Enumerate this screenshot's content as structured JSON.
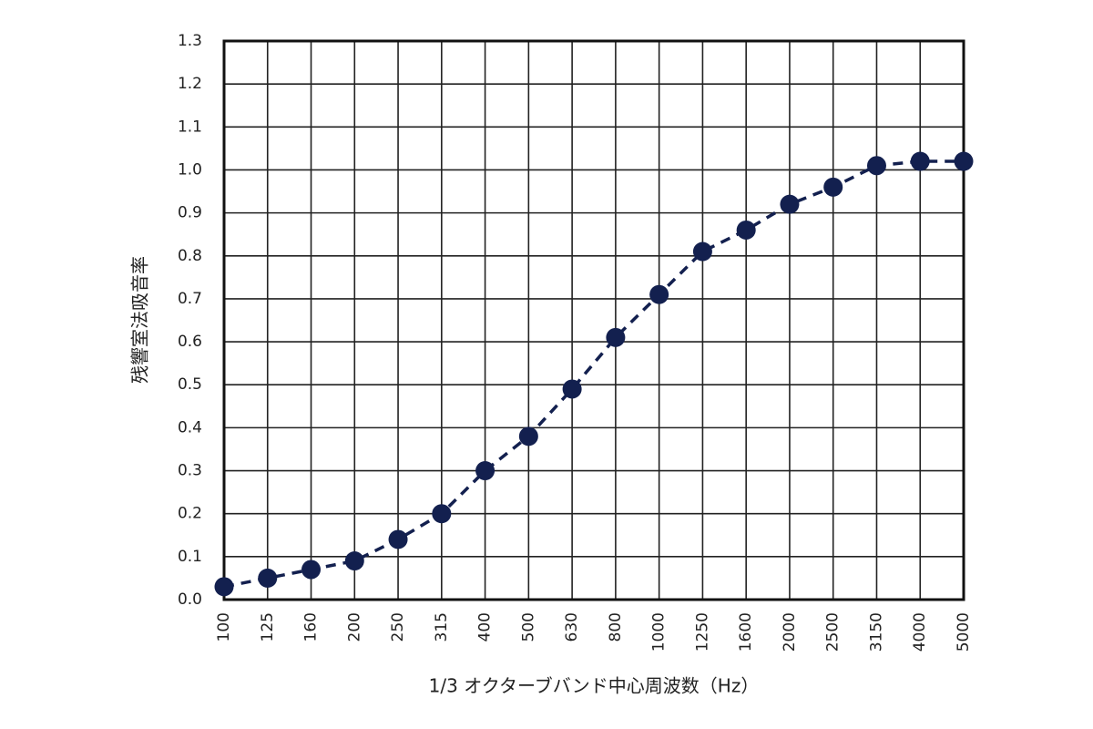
{
  "chart_data": {
    "type": "line",
    "xlabel": "1/3 オクターブバンド中心周波数（Hz）",
    "ylabel": "残響室法吸音率",
    "categories": [
      "100",
      "125",
      "160",
      "200",
      "250",
      "315",
      "400",
      "500",
      "630",
      "800",
      "1000",
      "1250",
      "1600",
      "2000",
      "2500",
      "3150",
      "4000",
      "5000"
    ],
    "series": [
      {
        "values": [
          0.03,
          0.05,
          0.07,
          0.09,
          0.14,
          0.2,
          0.3,
          0.38,
          0.49,
          0.61,
          0.71,
          0.81,
          0.86,
          0.92,
          0.96,
          1.01,
          1.02,
          1.02
        ]
      }
    ],
    "ylim": [
      0,
      1.3
    ],
    "yticks": [
      "0.0",
      "0.1",
      "0.2",
      "0.3",
      "0.4",
      "0.5",
      "0.6",
      "0.7",
      "0.8",
      "0.9",
      "1.0",
      "1.1",
      "1.2",
      "1.3"
    ],
    "grid": true,
    "line_style": "dashed",
    "marker": "circle",
    "colors": {
      "series": "#13204f",
      "grid": "#222222",
      "frame": "#111111"
    }
  }
}
